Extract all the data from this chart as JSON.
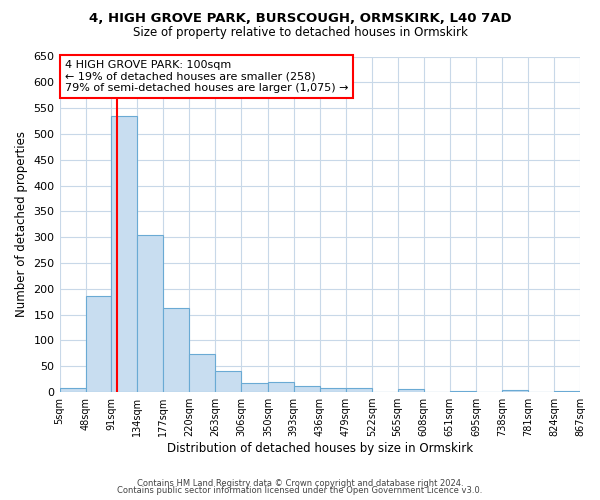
{
  "title_line1": "4, HIGH GROVE PARK, BURSCOUGH, ORMSKIRK, L40 7AD",
  "title_line2": "Size of property relative to detached houses in Ormskirk",
  "xlabel": "Distribution of detached houses by size in Ormskirk",
  "ylabel": "Number of detached properties",
  "bar_color": "#c8ddf0",
  "bar_edge_color": "#6aaad4",
  "plot_bg_color": "#ffffff",
  "fig_bg_color": "#ffffff",
  "grid_color": "#c8d8e8",
  "red_line_x": 100,
  "annotation_title": "4 HIGH GROVE PARK: 100sqm",
  "annotation_line2": "← 19% of detached houses are smaller (258)",
  "annotation_line3": "79% of semi-detached houses are larger (1,075) →",
  "bin_edges": [
    5,
    48,
    91,
    134,
    177,
    220,
    263,
    306,
    350,
    393,
    436,
    479,
    522,
    565,
    608,
    651,
    695,
    738,
    781,
    824,
    867
  ],
  "bin_counts": [
    8,
    187,
    535,
    305,
    163,
    74,
    41,
    17,
    20,
    12,
    8,
    7,
    0,
    6,
    0,
    2,
    0,
    4,
    0,
    2
  ],
  "ylim": [
    0,
    650
  ],
  "yticks": [
    0,
    50,
    100,
    150,
    200,
    250,
    300,
    350,
    400,
    450,
    500,
    550,
    600,
    650
  ],
  "footer_line1": "Contains HM Land Registry data © Crown copyright and database right 2024.",
  "footer_line2": "Contains public sector information licensed under the Open Government Licence v3.0."
}
